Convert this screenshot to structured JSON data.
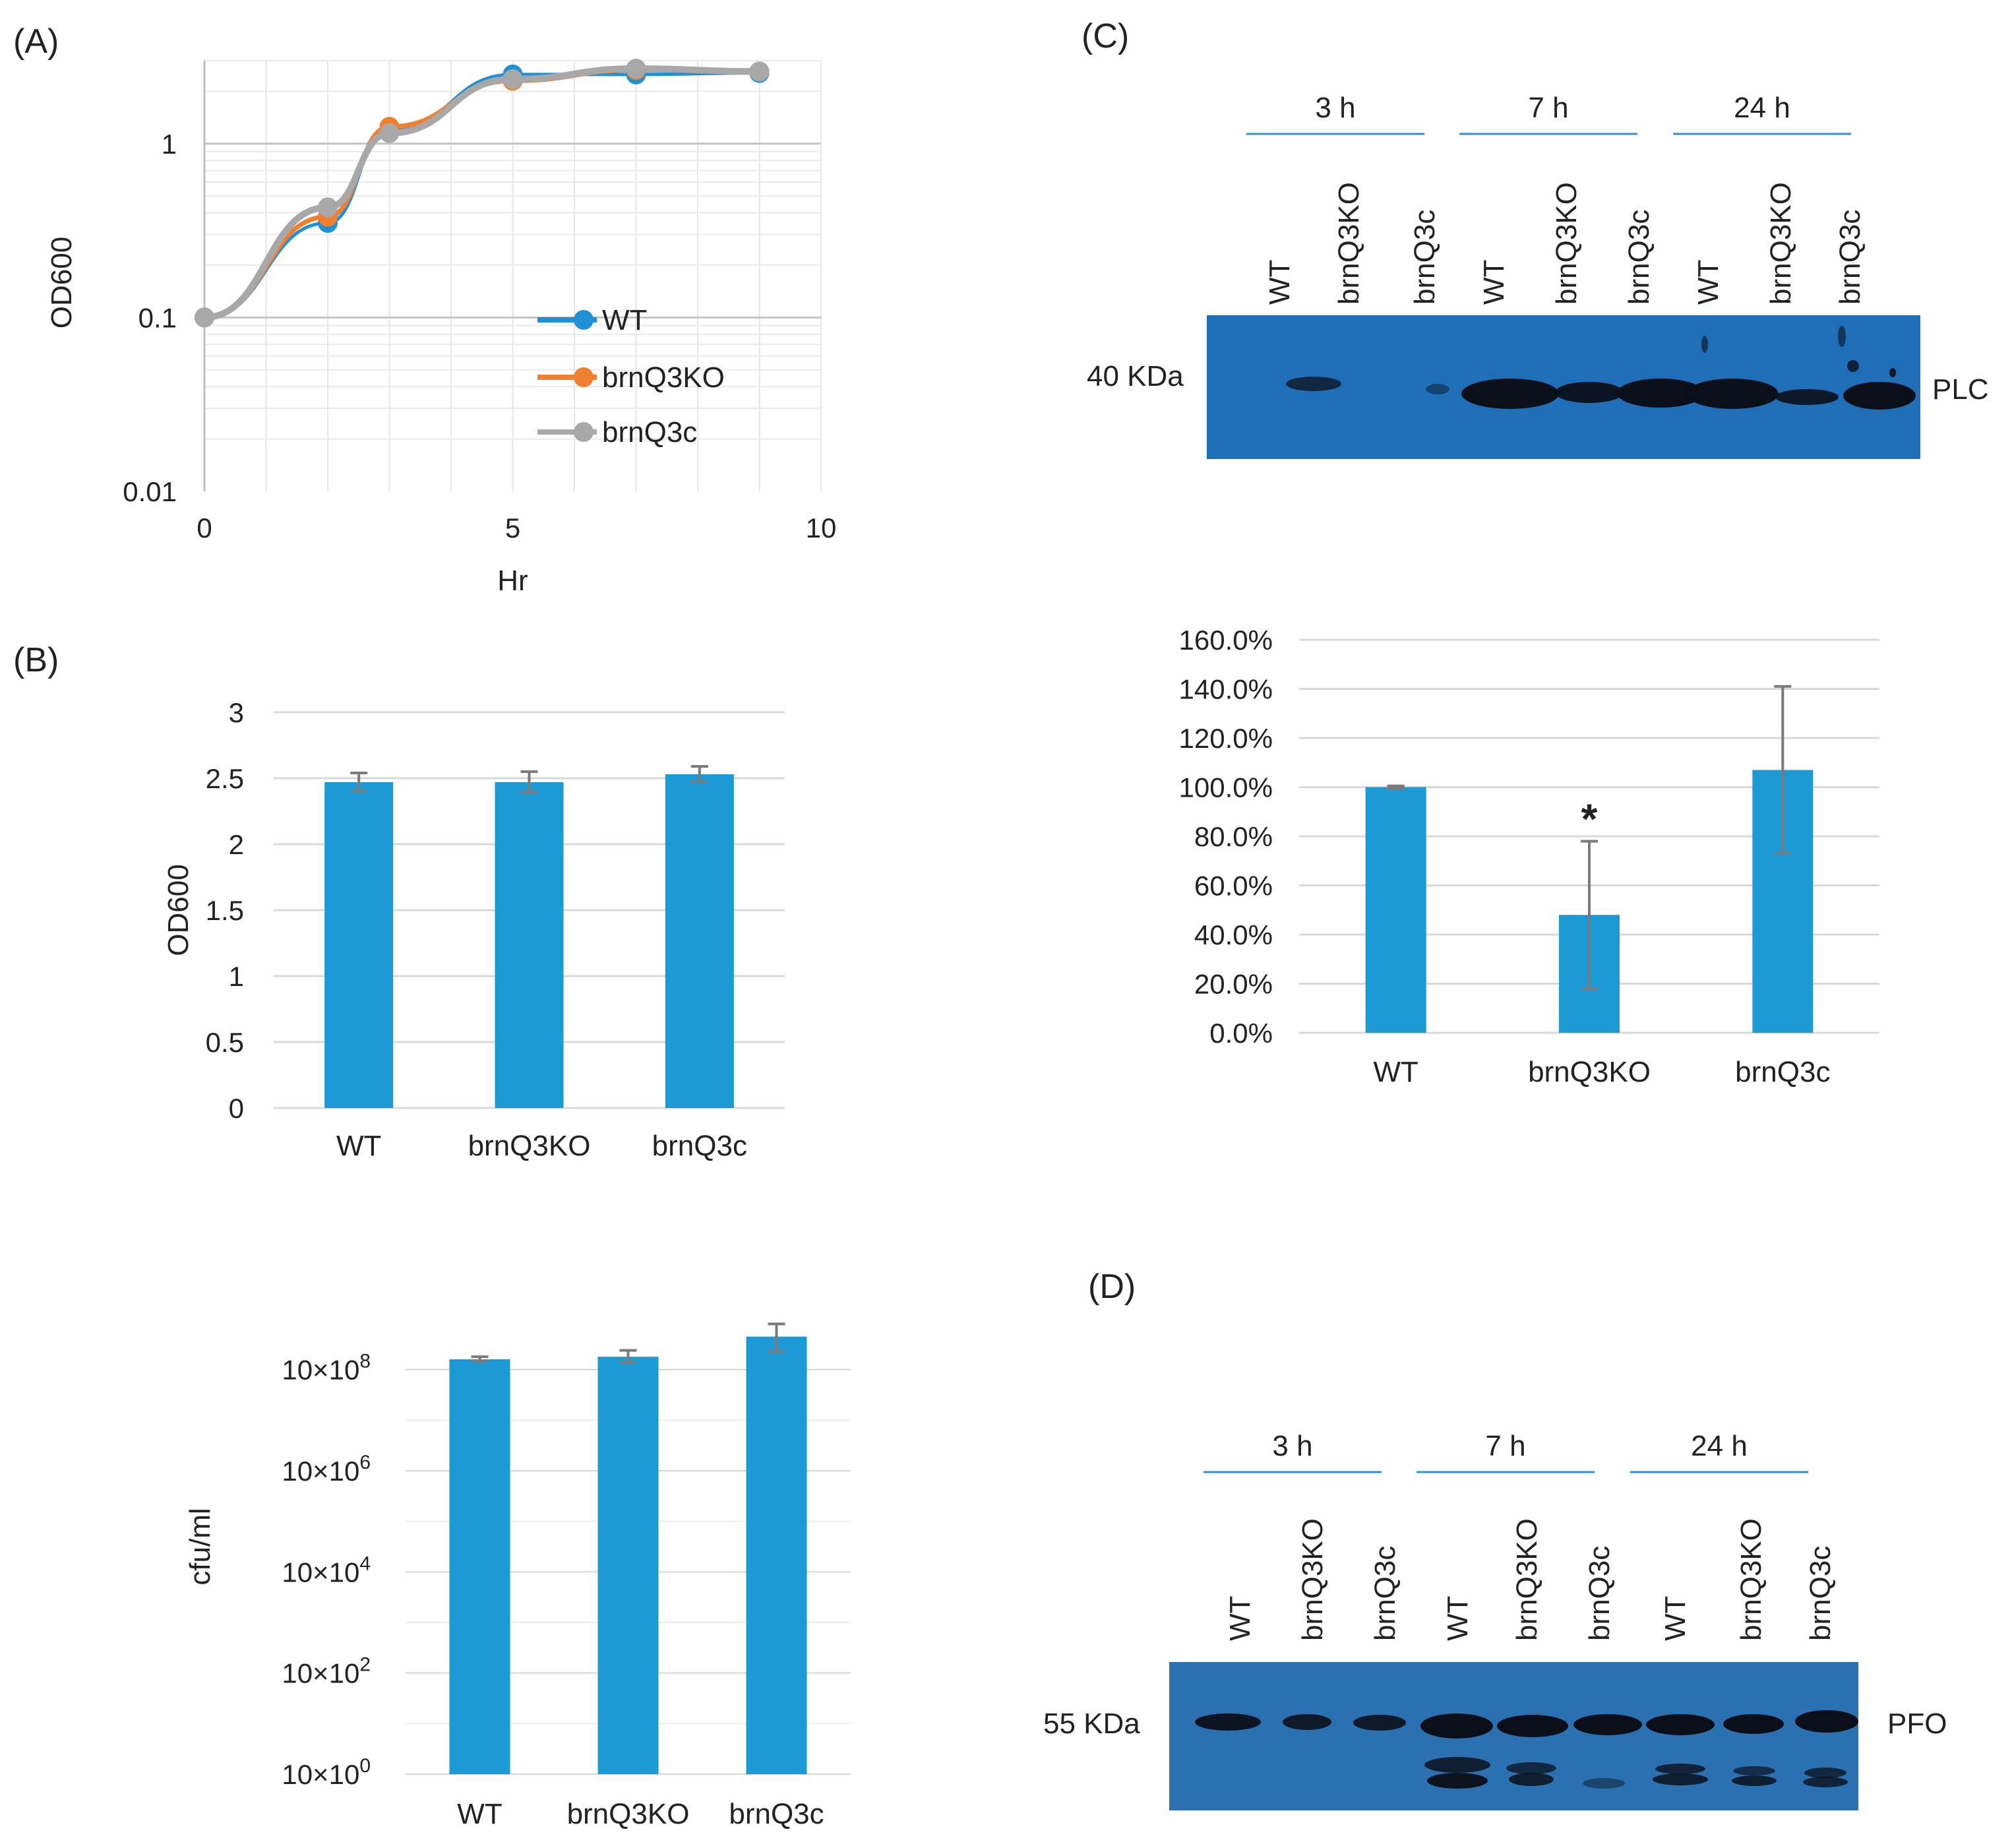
{
  "panels": {
    "a": "(A)",
    "b": "(B)",
    "c": "(C)",
    "d": "(D)"
  },
  "colors": {
    "wt": "#1f8fd6",
    "ko": "#f08030",
    "comp": "#a8a8a8",
    "bar": "#1c9ad6",
    "blot": "#1f6fb8",
    "blot_d": "#2b71b2",
    "band": "#0b0f1a"
  },
  "chart_data": [
    {
      "id": "A",
      "type": "line",
      "title": "",
      "xlabel": "Hr",
      "ylabel": "OD600",
      "yscale": "log",
      "xlim": [
        0,
        10
      ],
      "ylim": [
        0.01,
        3
      ],
      "x_ticks": [
        "0",
        "5",
        "10"
      ],
      "y_ticks": [
        "0.01",
        "0.1",
        "1"
      ],
      "grid": true,
      "legend_position": "center-right",
      "x": [
        0,
        2,
        3,
        5,
        7,
        9
      ],
      "series": [
        {
          "name": "WT",
          "values": [
            0.1,
            0.35,
            1.2,
            2.5,
            2.5,
            2.55
          ]
        },
        {
          "name": "brnQ3KO",
          "values": [
            0.1,
            0.38,
            1.25,
            2.3,
            2.65,
            2.6
          ]
        },
        {
          "name": "brnQ3c",
          "values": [
            0.1,
            0.43,
            1.15,
            2.35,
            2.7,
            2.6
          ]
        }
      ]
    },
    {
      "id": "B-top",
      "type": "bar",
      "ylabel": "OD600",
      "categories": [
        "WT",
        "brnQ3KO",
        "brnQ3c"
      ],
      "values": [
        2.47,
        2.47,
        2.53
      ],
      "errors": [
        0.07,
        0.08,
        0.06
      ],
      "ylim": [
        0,
        3
      ],
      "y_ticks": [
        "0",
        "0.5",
        "1",
        "1.5",
        "2",
        "2.5",
        "3"
      ],
      "grid": true
    },
    {
      "id": "B-bottom",
      "type": "bar",
      "ylabel": "cfu/ml",
      "yscale": "log",
      "categories": [
        "WT",
        "brnQ3KO",
        "brnQ3c"
      ],
      "values": [
        160000000,
        180000000,
        450000000
      ],
      "error_low": [
        145000000,
        140000000,
        230000000
      ],
      "error_high": [
        180000000,
        240000000,
        800000000
      ],
      "ylim": [
        1,
        1000000000
      ],
      "y_tick_values": [
        1,
        100,
        10000,
        1000000,
        100000000
      ],
      "y_ticks": [
        {
          "base": "10×10",
          "exp": "0"
        },
        {
          "base": "10×10",
          "exp": "2"
        },
        {
          "base": "10×10",
          "exp": "4"
        },
        {
          "base": "10×10",
          "exp": "6"
        },
        {
          "base": "10×10",
          "exp": "8"
        }
      ],
      "grid": true
    },
    {
      "id": "C",
      "type": "bar",
      "categories": [
        "WT",
        "brnQ3KO",
        "brnQ3c"
      ],
      "values": [
        100,
        48,
        107
      ],
      "errors": [
        0.5,
        30,
        34
      ],
      "ylim": [
        0,
        160
      ],
      "y_ticks": [
        "0.0%",
        "20.0%",
        "40.0%",
        "60.0%",
        "80.0%",
        "100.0%",
        "120.0%",
        "140.0%",
        "160.0%"
      ],
      "annotations": [
        {
          "category": "brnQ3KO",
          "text": "*"
        }
      ],
      "grid": true
    }
  ],
  "blots": {
    "c": {
      "groups": [
        "3 h",
        "7 h",
        "24 h"
      ],
      "lanes": [
        "WT",
        "brnQ3KO",
        "brnQ3c",
        "WT",
        "brnQ3KO",
        "brnQ3c",
        "WT",
        "brnQ3KO",
        "brnQ3c"
      ],
      "marker": "40 KDa",
      "protein": "PLC"
    },
    "d": {
      "groups": [
        "3 h",
        "7 h",
        "24 h"
      ],
      "lanes": [
        "WT",
        "brnQ3KO",
        "brnQ3c",
        "WT",
        "brnQ3KO",
        "brnQ3c",
        "WT",
        "brnQ3KO",
        "brnQ3c"
      ],
      "marker": "55 KDa",
      "protein": "PFO"
    }
  }
}
